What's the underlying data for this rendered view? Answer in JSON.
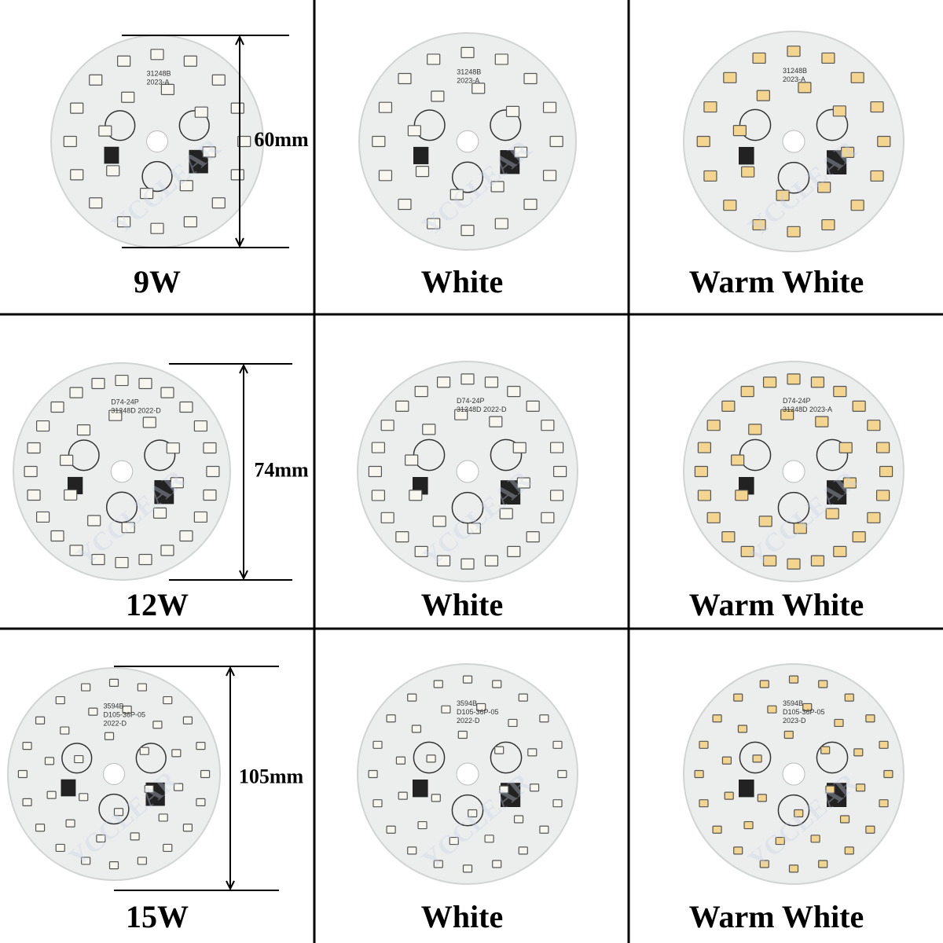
{
  "watermark": "YCCLEAR",
  "cells": [
    {
      "label": "9W",
      "dimension": "60mm",
      "board_text": [
        "31248B",
        "2023-A"
      ]
    },
    {
      "label": "White",
      "board_text": [
        "31248B",
        "2023-A"
      ]
    },
    {
      "label": "Warm White",
      "board_text": [
        "31248B",
        "2023-A"
      ]
    },
    {
      "label": "12W",
      "dimension": "74mm",
      "board_text": [
        "D74-24P",
        "31248D 2022-D"
      ]
    },
    {
      "label": "White",
      "board_text": [
        "D74-24P",
        "31248D 2022-D"
      ]
    },
    {
      "label": "Warm White",
      "board_text": [
        "D74-24P",
        "31248D 2023-A"
      ]
    },
    {
      "label": "15W",
      "dimension": "105mm",
      "board_text": [
        "3594B",
        "D105-36P-05",
        "2022-D"
      ]
    },
    {
      "label": "White",
      "board_text": [
        "3594B",
        "D105-36P-05",
        "2022-D"
      ]
    },
    {
      "label": "Warm White",
      "board_text": [
        "3594B",
        "D105-36P-05",
        "2023-D"
      ]
    }
  ]
}
